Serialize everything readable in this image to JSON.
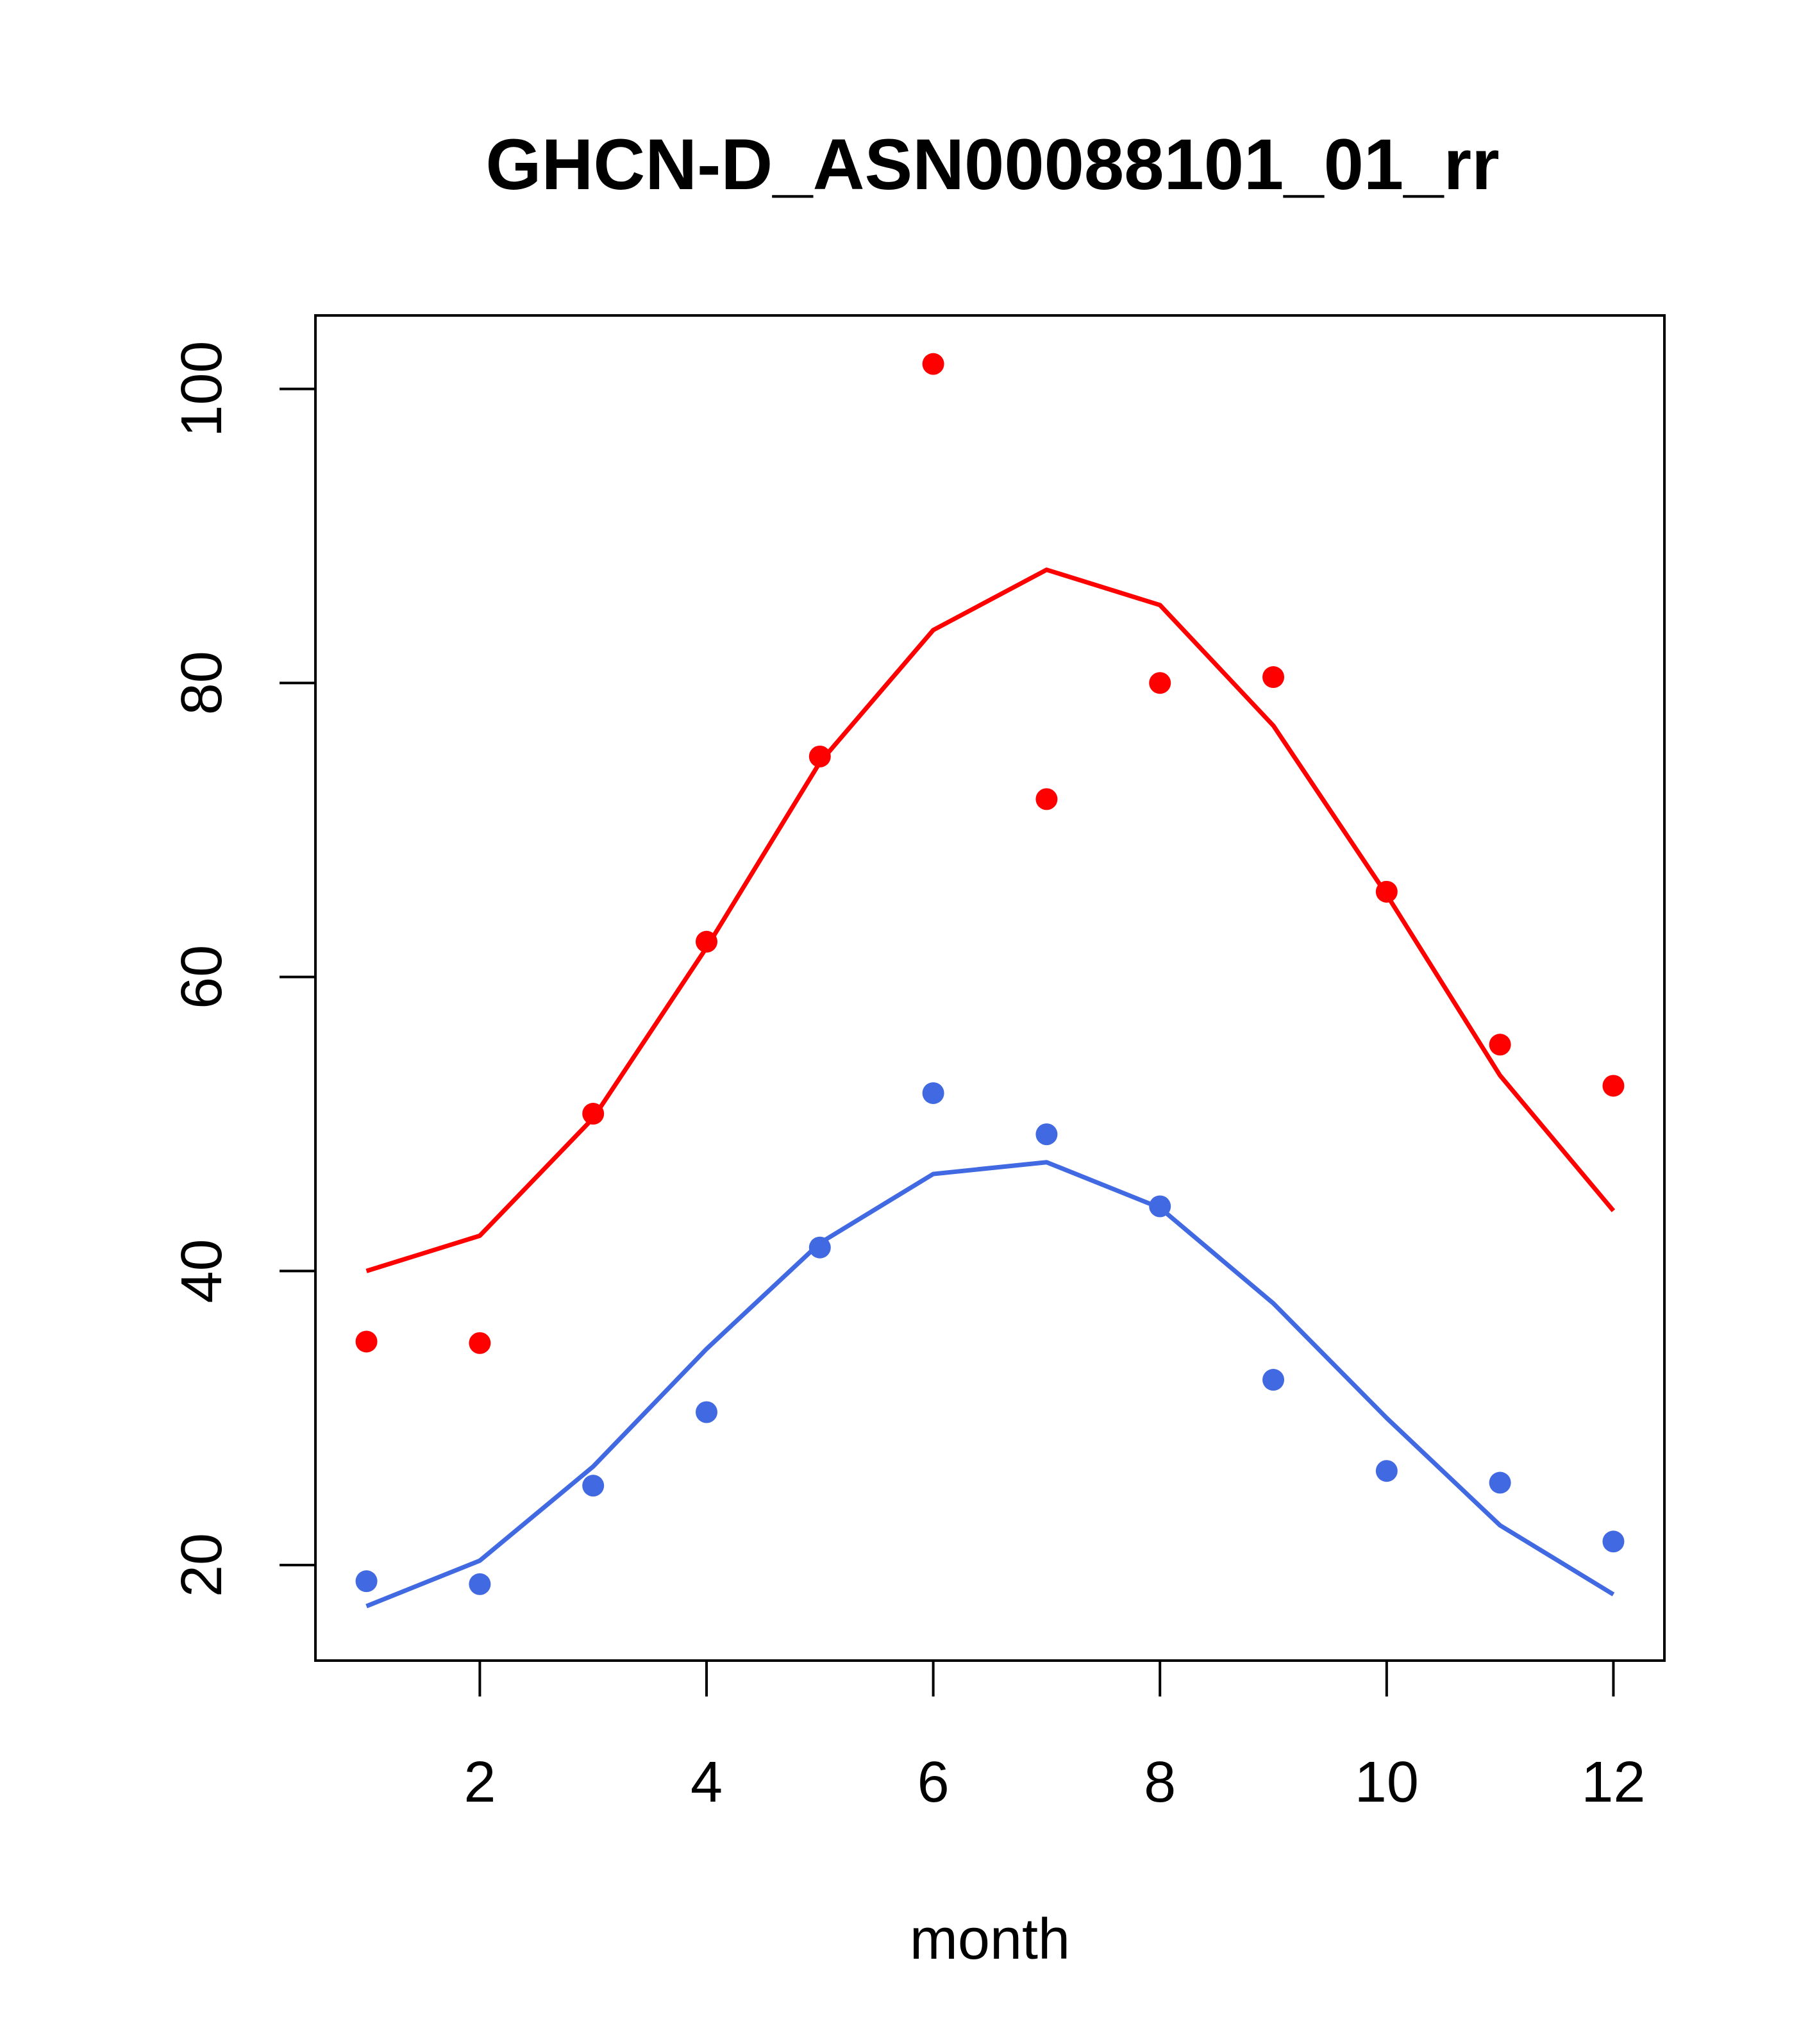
{
  "chart_data": {
    "type": "scatter",
    "title": "GHCN-D_ASN00088101_01_rr",
    "xlabel": "month",
    "ylabel": "",
    "xlim": [
      0.55,
      12.45
    ],
    "ylim": [
      13.5,
      105
    ],
    "x_ticks": [
      2,
      4,
      6,
      8,
      10,
      12
    ],
    "y_ticks": [
      20,
      40,
      60,
      80,
      100
    ],
    "grid": false,
    "legend": "none",
    "series": [
      {
        "color": "#ff0000",
        "points": [
          {
            "x": 1,
            "y": 35.2
          },
          {
            "x": 2,
            "y": 35.1
          },
          {
            "x": 3,
            "y": 50.7
          },
          {
            "x": 4,
            "y": 62.4
          },
          {
            "x": 5,
            "y": 75.0
          },
          {
            "x": 6,
            "y": 101.7
          },
          {
            "x": 7,
            "y": 72.1
          },
          {
            "x": 8,
            "y": 80.0
          },
          {
            "x": 9,
            "y": 80.4
          },
          {
            "x": 10,
            "y": 65.8
          },
          {
            "x": 11,
            "y": 55.4
          },
          {
            "x": 12,
            "y": 52.6
          }
        ],
        "line": [
          {
            "x": 1,
            "y": 40.0
          },
          {
            "x": 2,
            "y": 42.4
          },
          {
            "x": 3,
            "y": 50.4
          },
          {
            "x": 4,
            "y": 62.0
          },
          {
            "x": 5,
            "y": 74.6
          },
          {
            "x": 6,
            "y": 83.6
          },
          {
            "x": 7,
            "y": 87.7
          },
          {
            "x": 8,
            "y": 85.3
          },
          {
            "x": 9,
            "y": 77.1
          },
          {
            "x": 10,
            "y": 65.6
          },
          {
            "x": 11,
            "y": 53.3
          },
          {
            "x": 12,
            "y": 44.1
          }
        ]
      },
      {
        "color": "#4169e1",
        "points": [
          {
            "x": 1,
            "y": 18.9
          },
          {
            "x": 2,
            "y": 18.7
          },
          {
            "x": 3,
            "y": 25.4
          },
          {
            "x": 4,
            "y": 30.4
          },
          {
            "x": 5,
            "y": 41.6
          },
          {
            "x": 6,
            "y": 52.1
          },
          {
            "x": 7,
            "y": 49.3
          },
          {
            "x": 8,
            "y": 44.4
          },
          {
            "x": 9,
            "y": 32.6
          },
          {
            "x": 10,
            "y": 26.4
          },
          {
            "x": 11,
            "y": 25.6
          },
          {
            "x": 12,
            "y": 21.6
          }
        ],
        "line": [
          {
            "x": 1,
            "y": 17.2
          },
          {
            "x": 2,
            "y": 20.3
          },
          {
            "x": 3,
            "y": 26.7
          },
          {
            "x": 4,
            "y": 34.7
          },
          {
            "x": 5,
            "y": 41.9
          },
          {
            "x": 6,
            "y": 46.6
          },
          {
            "x": 7,
            "y": 47.4
          },
          {
            "x": 8,
            "y": 44.3
          },
          {
            "x": 9,
            "y": 37.8
          },
          {
            "x": 10,
            "y": 30.0
          },
          {
            "x": 11,
            "y": 22.7
          },
          {
            "x": 12,
            "y": 18.0
          }
        ]
      }
    ]
  }
}
